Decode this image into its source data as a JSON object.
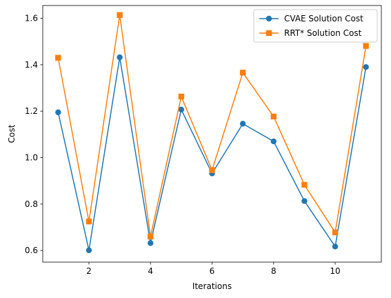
{
  "chart_data": {
    "type": "line",
    "xlabel": "Iterations",
    "ylabel": "Cost",
    "xlim": [
      0.5,
      11.5
    ],
    "ylim": [
      0.55,
      1.655
    ],
    "xticks": [
      2,
      4,
      6,
      8,
      10
    ],
    "xtick_labels": [
      "2",
      "4",
      "6",
      "8",
      "10"
    ],
    "yticks": [
      0.6,
      0.8,
      1.0,
      1.2,
      1.4,
      1.6
    ],
    "ytick_labels": [
      "0.6",
      "0.8",
      "1.0",
      "1.2",
      "1.4",
      "1.6"
    ],
    "grid": false,
    "legend_position": "top-right",
    "x": [
      1,
      2,
      3,
      4,
      5,
      6,
      7,
      8,
      9,
      10,
      11
    ],
    "series": [
      {
        "name": "CVAE Solution Cost",
        "color": "#1f77b4",
        "marker": "circle",
        "values": [
          1.195,
          0.601,
          1.432,
          0.632,
          1.207,
          0.932,
          1.146,
          1.07,
          0.813,
          0.617,
          1.39
        ]
      },
      {
        "name": "RRT* Solution Cost",
        "color": "#ff7f0e",
        "marker": "square",
        "values": [
          1.43,
          0.725,
          1.614,
          0.66,
          1.263,
          0.946,
          1.366,
          1.177,
          0.883,
          0.678,
          1.481
        ]
      }
    ]
  }
}
